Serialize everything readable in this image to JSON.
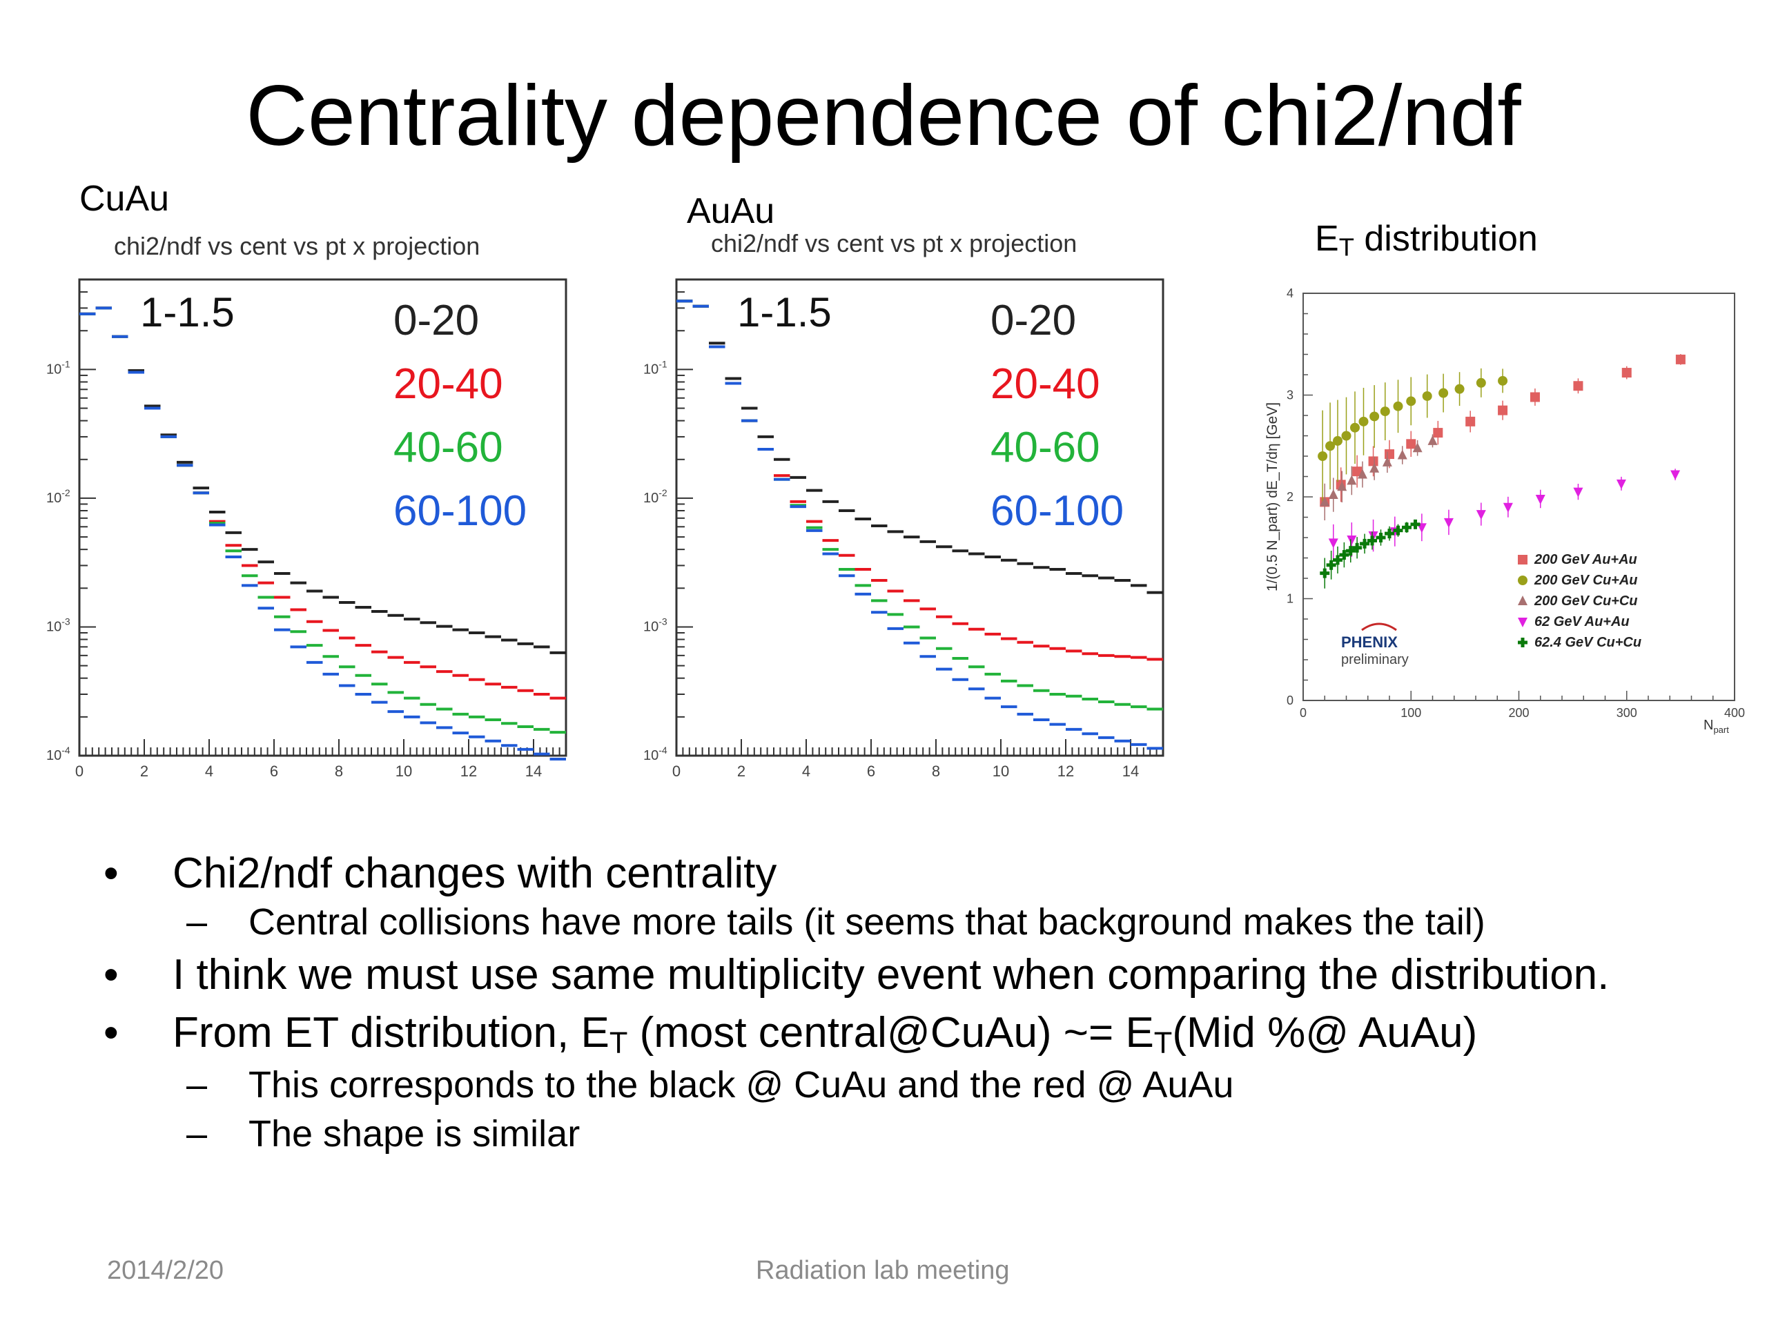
{
  "title": "Centrality dependence of chi2/ndf",
  "panels": {
    "cuau_label": "CuAu",
    "auau_label": "AuAu",
    "et_label_main": "E",
    "et_label_sub": "T",
    "et_label_rest": " distribution",
    "hist_title": "chi2/ndf vs cent vs pt x projection"
  },
  "bullets": [
    {
      "text": "Chi2/ndf changes with centrality"
    },
    {
      "text": "Central collisions have more tails (it seems that background makes the tail)"
    },
    {
      "text": "I think we must use same multiplicity event when comparing the distribution."
    },
    {
      "pre": "From ET distribution, E",
      "sub1": "T",
      "mid": " (most central@CuAu) ~= E",
      "sub2": "T",
      "post": "(Mid %@ AuAu)"
    },
    {
      "text": "This corresponds to the black @ CuAu and the red @ AuAu"
    },
    {
      "text": "The shape is similar"
    }
  ],
  "footer": {
    "date": "2014/2/20",
    "center": "Radiation lab meeting"
  },
  "colors": {
    "c0_20": "#222222",
    "c20_40": "#e8161f",
    "c40_60": "#22b33a",
    "c60_100": "#1f5ad8",
    "auau200": "#e06060",
    "cuau200": "#9aa01a",
    "cucu200": "#a87070",
    "auau62": "#e020e0",
    "cucu62": "#0a7a0a"
  },
  "chart_data": [
    {
      "type": "line",
      "name": "CuAu",
      "title": "chi2/ndf vs cent vs pt x projection",
      "annotation": "1-1.5",
      "log_y": true,
      "xlim": [
        0,
        15
      ],
      "ylim": [
        0.0001,
        0.5
      ],
      "x_ticks": [
        "0",
        "2",
        "4",
        "6",
        "8",
        "10",
        "12",
        "14"
      ],
      "y_ticks": [
        "10^-4",
        "10^-3",
        "10^-2",
        "10^-1"
      ],
      "legend": [
        "0-20",
        "20-40",
        "40-60",
        "60-100"
      ],
      "x": [
        0.25,
        0.75,
        1.25,
        1.75,
        2.25,
        2.75,
        3.25,
        3.75,
        4.25,
        4.75,
        5.25,
        5.75,
        6.25,
        6.75,
        7.25,
        7.75,
        8.25,
        8.75,
        9.25,
        9.75,
        10.25,
        10.75,
        11.25,
        11.75,
        12.25,
        12.75,
        13.25,
        13.75,
        14.25,
        14.75
      ],
      "series": [
        {
          "name": "0-20",
          "values": [
            0.27,
            0.3,
            0.18,
            0.098,
            0.052,
            0.031,
            0.019,
            0.012,
            0.0078,
            0.0054,
            0.004,
            0.0032,
            0.0026,
            0.0022,
            0.0019,
            0.0017,
            0.00155,
            0.00142,
            0.00132,
            0.00123,
            0.00115,
            0.00108,
            0.00101,
            0.00095,
            0.0009,
            0.00084,
            0.00079,
            0.00074,
            0.0007,
            0.00063
          ]
        },
        {
          "name": "20-40",
          "values": [
            0.27,
            0.3,
            0.18,
            0.095,
            0.05,
            0.03,
            0.018,
            0.011,
            0.0066,
            0.0043,
            0.003,
            0.0022,
            0.0017,
            0.00136,
            0.0011,
            0.00094,
            0.00082,
            0.00072,
            0.00064,
            0.00058,
            0.00053,
            0.00049,
            0.00045,
            0.00042,
            0.00039,
            0.00036,
            0.00034,
            0.00032,
            0.0003,
            0.00028
          ]
        },
        {
          "name": "40-60",
          "values": [
            0.27,
            0.3,
            0.18,
            0.095,
            0.05,
            0.03,
            0.018,
            0.011,
            0.0064,
            0.0039,
            0.0025,
            0.0017,
            0.0012,
            0.00092,
            0.00072,
            0.00059,
            0.00049,
            0.00042,
            0.00036,
            0.00031,
            0.00028,
            0.00025,
            0.00023,
            0.00021,
            0.0002,
            0.00019,
            0.000178,
            0.000168,
            0.00016,
            0.000152
          ]
        },
        {
          "name": "60-100",
          "values": [
            0.27,
            0.3,
            0.18,
            0.095,
            0.05,
            0.03,
            0.018,
            0.011,
            0.0062,
            0.0035,
            0.0021,
            0.0014,
            0.00095,
            0.0007,
            0.00053,
            0.00043,
            0.00035,
            0.0003,
            0.00026,
            0.00022,
            0.0002,
            0.00018,
            0.000165,
            0.00015,
            0.00014,
            0.00013,
            0.00012,
            0.000112,
            0.000103,
            9.4e-05
          ]
        }
      ]
    },
    {
      "type": "line",
      "name": "AuAu",
      "title": "chi2/ndf vs cent vs pt x projection",
      "annotation": "1-1.5",
      "log_y": true,
      "xlim": [
        0,
        15
      ],
      "ylim": [
        0.0001,
        0.5
      ],
      "x_ticks": [
        "0",
        "2",
        "4",
        "6",
        "8",
        "10",
        "12",
        "14"
      ],
      "y_ticks": [
        "10^-4",
        "10^-3",
        "10^-2",
        "10^-1"
      ],
      "legend": [
        "0-20",
        "20-40",
        "40-60",
        "60-100"
      ],
      "x": [
        0.25,
        0.75,
        1.25,
        1.75,
        2.25,
        2.75,
        3.25,
        3.75,
        4.25,
        4.75,
        5.25,
        5.75,
        6.25,
        6.75,
        7.25,
        7.75,
        8.25,
        8.75,
        9.25,
        9.75,
        10.25,
        10.75,
        11.25,
        11.75,
        12.25,
        12.75,
        13.25,
        13.75,
        14.25,
        14.75
      ],
      "series": [
        {
          "name": "0-20",
          "values": [
            0.34,
            0.31,
            0.16,
            0.085,
            0.05,
            0.03,
            0.02,
            0.0145,
            0.0115,
            0.0094,
            0.008,
            0.0069,
            0.0061,
            0.0055,
            0.005,
            0.0046,
            0.0042,
            0.0039,
            0.0037,
            0.0035,
            0.0033,
            0.0031,
            0.0029,
            0.0028,
            0.0026,
            0.0025,
            0.0024,
            0.0023,
            0.0021,
            0.00185
          ]
        },
        {
          "name": "20-40",
          "values": [
            0.34,
            0.31,
            0.15,
            0.078,
            0.04,
            0.024,
            0.015,
            0.0094,
            0.0066,
            0.0047,
            0.0036,
            0.0028,
            0.0023,
            0.0019,
            0.0016,
            0.00138,
            0.0012,
            0.00106,
            0.00096,
            0.00088,
            0.00081,
            0.00076,
            0.00071,
            0.00068,
            0.00065,
            0.00062,
            0.0006,
            0.00059,
            0.00058,
            0.00056
          ]
        },
        {
          "name": "40-60",
          "values": [
            0.34,
            0.31,
            0.15,
            0.078,
            0.04,
            0.024,
            0.014,
            0.0088,
            0.0059,
            0.004,
            0.0028,
            0.0021,
            0.0016,
            0.00125,
            0.001,
            0.00082,
            0.00068,
            0.00057,
            0.00049,
            0.00043,
            0.00038,
            0.00035,
            0.00032,
            0.0003,
            0.00029,
            0.000275,
            0.000262,
            0.00025,
            0.00024,
            0.00023
          ]
        },
        {
          "name": "60-100",
          "values": [
            0.34,
            0.31,
            0.15,
            0.078,
            0.04,
            0.024,
            0.014,
            0.0086,
            0.0056,
            0.0037,
            0.0025,
            0.0018,
            0.0013,
            0.00097,
            0.00075,
            0.00059,
            0.00047,
            0.00039,
            0.00033,
            0.00028,
            0.00024,
            0.00021,
            0.00019,
            0.000175,
            0.00016,
            0.000148,
            0.000138,
            0.00013,
            0.000122,
            0.000114
          ]
        }
      ]
    },
    {
      "type": "scatter",
      "name": "ET distribution",
      "title": "E_T distribution",
      "xlabel": "N_part",
      "ylabel": "1/(0.5 N_part) dE_T/dη [GeV]",
      "xlim": [
        0,
        400
      ],
      "ylim": [
        0,
        4
      ],
      "x_ticks": [
        "0",
        "100",
        "200",
        "300",
        "400"
      ],
      "y_ticks": [
        "0",
        "1",
        "2",
        "3",
        "4"
      ],
      "legend_position": "bottom-right",
      "logo": "PHENIX",
      "logo_sub": "preliminary",
      "series": [
        {
          "name": "200 GeV Au+Au",
          "marker": "square",
          "x": [
            20,
            35,
            50,
            65,
            80,
            100,
            125,
            155,
            185,
            215,
            255,
            300,
            350
          ],
          "y": [
            1.95,
            2.12,
            2.25,
            2.35,
            2.42,
            2.52,
            2.63,
            2.74,
            2.85,
            2.98,
            3.09,
            3.22,
            3.35
          ]
        },
        {
          "name": "200 GeV Cu+Au",
          "marker": "circle",
          "x": [
            18,
            25,
            32,
            40,
            48,
            56,
            66,
            76,
            88,
            100,
            115,
            130,
            145,
            165,
            185
          ],
          "y": [
            2.4,
            2.5,
            2.55,
            2.6,
            2.68,
            2.74,
            2.79,
            2.84,
            2.89,
            2.94,
            2.99,
            3.02,
            3.06,
            3.12,
            3.14
          ]
        },
        {
          "name": "200 GeV Cu+Cu",
          "marker": "triangle",
          "x": [
            20,
            28,
            36,
            45,
            55,
            66,
            78,
            92,
            106,
            120
          ],
          "y": [
            1.95,
            2.02,
            2.1,
            2.16,
            2.22,
            2.28,
            2.34,
            2.41,
            2.48,
            2.55
          ]
        },
        {
          "name": "62 GeV Au+Au",
          "marker": "triangle-down",
          "x": [
            28,
            45,
            65,
            85,
            110,
            135,
            165,
            190,
            220,
            255,
            295,
            345
          ],
          "y": [
            1.55,
            1.58,
            1.62,
            1.66,
            1.7,
            1.75,
            1.83,
            1.9,
            1.98,
            2.05,
            2.13,
            2.22
          ]
        },
        {
          "name": "62.4 GeV Cu+Cu",
          "marker": "cross",
          "x": [
            20,
            26,
            32,
            38,
            44,
            50,
            57,
            64,
            72,
            80,
            88,
            96,
            104
          ],
          "y": [
            1.25,
            1.33,
            1.38,
            1.43,
            1.47,
            1.5,
            1.54,
            1.57,
            1.6,
            1.64,
            1.67,
            1.7,
            1.73
          ]
        }
      ]
    }
  ]
}
